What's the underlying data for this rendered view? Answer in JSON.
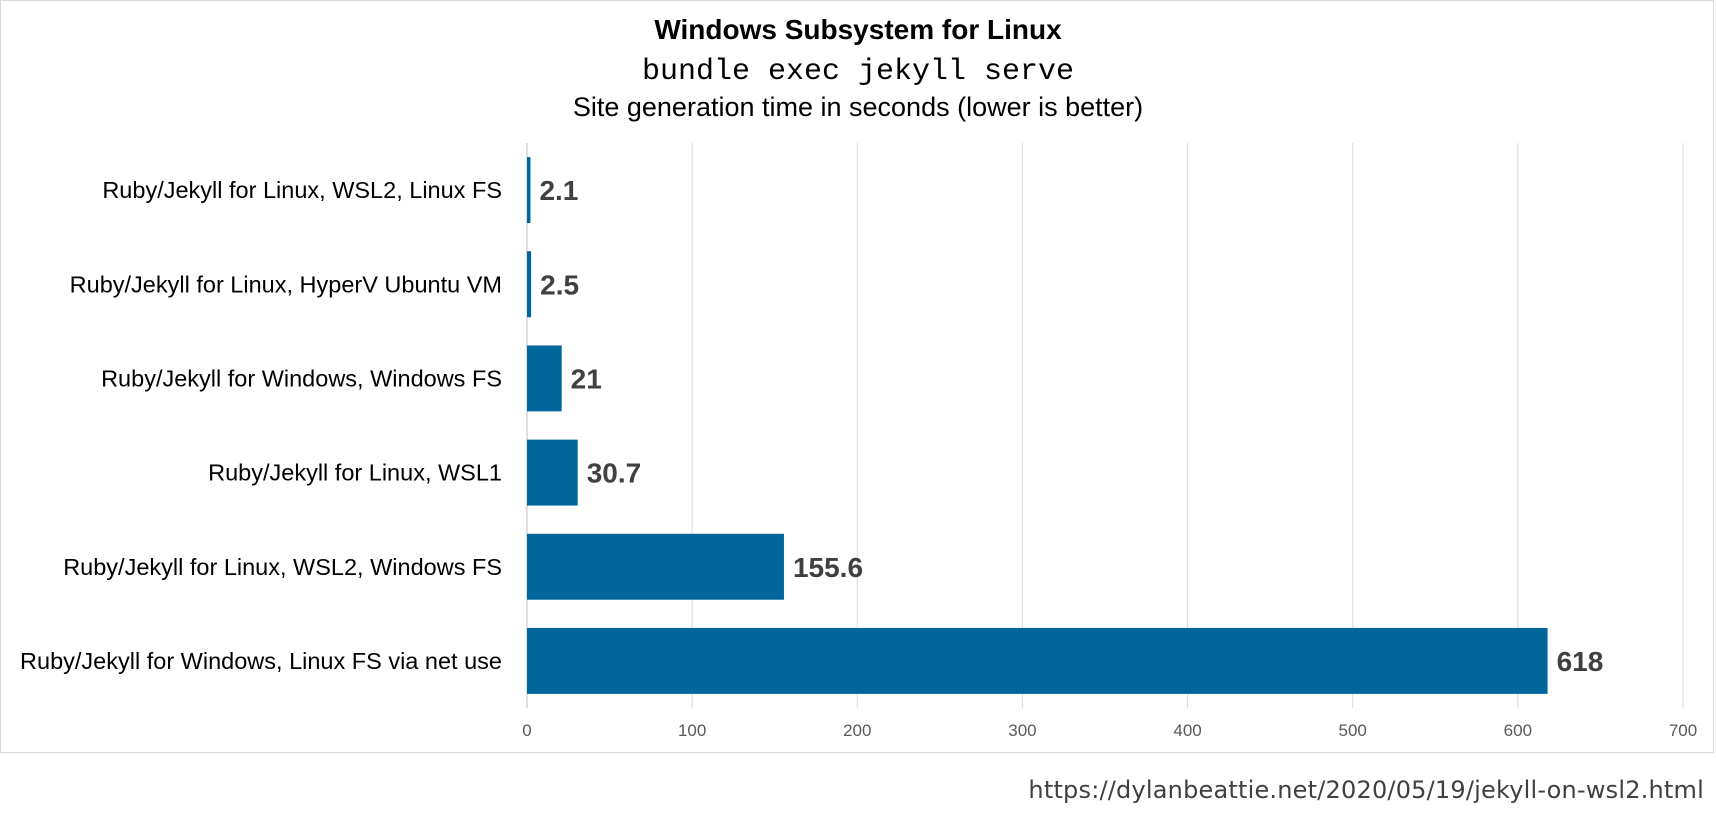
{
  "chart_data": {
    "type": "bar",
    "orientation": "horizontal",
    "title": "Windows Subsystem for Linux",
    "subtitle_command": "bundle exec jekyll serve",
    "subtitle": "Site generation time in seconds (lower is better)",
    "categories": [
      "Ruby/Jekyll for Linux, WSL2, Linux FS",
      "Ruby/Jekyll for Linux, HyperV Ubuntu VM",
      "Ruby/Jekyll for Windows, Windows FS",
      "Ruby/Jekyll for Linux, WSL1",
      "Ruby/Jekyll for Linux, WSL2, Windows FS",
      "Ruby/Jekyll for Windows, Linux FS via net use"
    ],
    "values": [
      2.1,
      2.5,
      21,
      30.7,
      155.6,
      618
    ],
    "value_labels": [
      "2.1",
      "2.5",
      "21",
      "30.7",
      "155.6",
      "618"
    ],
    "xlim": [
      0,
      700
    ],
    "xticks": [
      0,
      100,
      200,
      300,
      400,
      500,
      600,
      700
    ],
    "xtick_labels": [
      "0",
      "100",
      "200",
      "300",
      "400",
      "500",
      "600",
      "700"
    ],
    "grid": "vertical",
    "legend": "none",
    "bar_color": "#00669c"
  },
  "source_url": "https://dylanbeattie.net/2020/05/19/jekyll-on-wsl2.html"
}
